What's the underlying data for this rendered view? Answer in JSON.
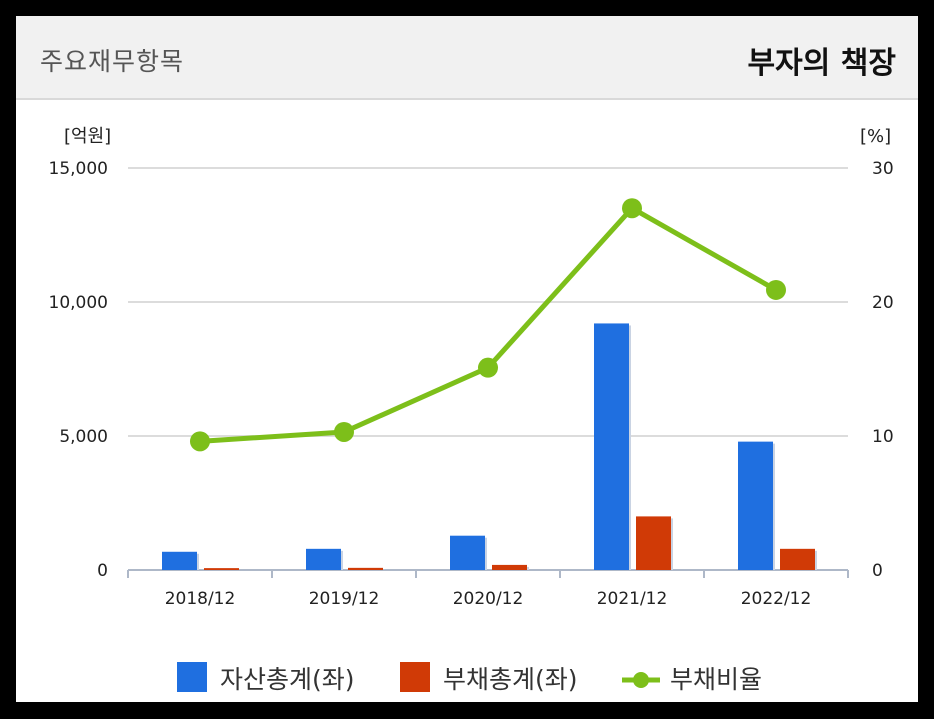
{
  "header": {
    "title": "주요재무항목",
    "badge": "부자의 책장"
  },
  "colors": {
    "assets": "#1f6fe0",
    "liabilities": "#d03a06",
    "ratio": "#7dbf1a"
  },
  "chart_data": {
    "type": "bar",
    "categories": [
      "2018/12",
      "2019/12",
      "2020/12",
      "2021/12",
      "2022/12"
    ],
    "series": [
      {
        "name": "자산총계(좌)",
        "type": "bar",
        "axis": "left",
        "values": [
          680,
          790,
          1280,
          9200,
          4790
        ]
      },
      {
        "name": "부채총계(좌)",
        "type": "bar",
        "axis": "left",
        "values": [
          70,
          80,
          190,
          2000,
          790
        ]
      },
      {
        "name": "부채비율",
        "type": "line",
        "axis": "right",
        "values": [
          9.6,
          10.3,
          15.1,
          27.0,
          20.9
        ]
      }
    ],
    "left_axis": {
      "unit": "[억원]",
      "ticks": [
        "0",
        "5,000",
        "10,000",
        "15,000"
      ],
      "ylim": [
        0,
        15000
      ]
    },
    "right_axis": {
      "unit": "[%]",
      "ticks": [
        "0",
        "10",
        "20",
        "30"
      ],
      "ylim": [
        0,
        30
      ]
    },
    "grid": true,
    "legend_position": "bottom"
  }
}
